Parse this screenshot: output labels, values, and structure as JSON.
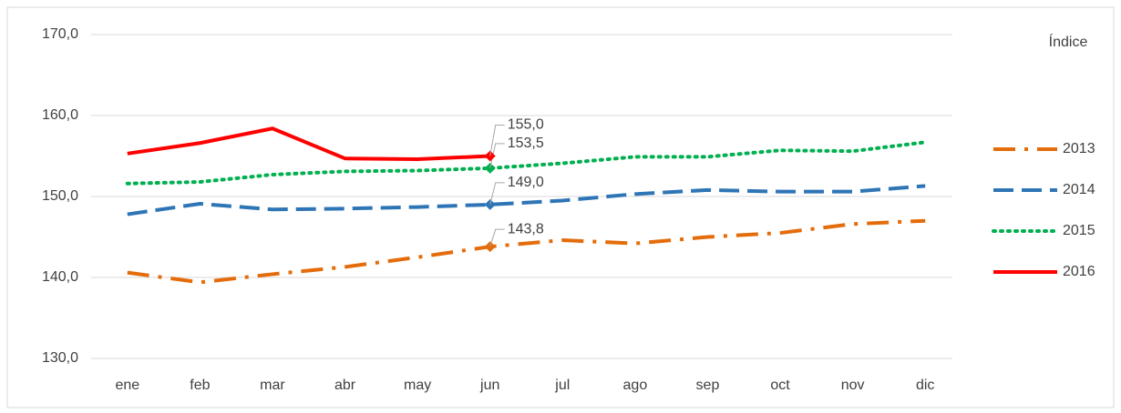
{
  "chart_data": {
    "type": "line",
    "legend_title": "Índice",
    "categories": [
      "ene",
      "feb",
      "mar",
      "abr",
      "may",
      "jun",
      "jul",
      "ago",
      "sep",
      "oct",
      "nov",
      "dic"
    ],
    "series": [
      {
        "name": "2013",
        "color": "#e46c0a",
        "style": "dashdot",
        "values": [
          140.6,
          139.4,
          140.4,
          141.3,
          142.5,
          143.8,
          144.6,
          144.2,
          145.0,
          145.5,
          146.6,
          147.0
        ],
        "value_labels": [
          null,
          null,
          null,
          null,
          null,
          "143,8",
          null,
          null,
          null,
          null,
          null,
          null
        ]
      },
      {
        "name": "2014",
        "color": "#2e75b6",
        "style": "dash",
        "values": [
          147.8,
          149.1,
          148.4,
          148.5,
          148.7,
          149.0,
          149.5,
          150.3,
          150.8,
          150.6,
          150.6,
          151.3
        ],
        "value_labels": [
          null,
          null,
          null,
          null,
          null,
          "149,0",
          null,
          null,
          null,
          null,
          null,
          null
        ]
      },
      {
        "name": "2015",
        "color": "#00b050",
        "style": "dot",
        "values": [
          151.6,
          151.8,
          152.7,
          153.1,
          153.2,
          153.5,
          154.1,
          154.9,
          154.9,
          155.7,
          155.6,
          156.7
        ],
        "value_labels": [
          null,
          null,
          null,
          null,
          null,
          "153,5",
          null,
          null,
          null,
          null,
          null,
          null
        ]
      },
      {
        "name": "2016",
        "color": "#ff0000",
        "style": "solid",
        "values": [
          155.3,
          156.6,
          158.4,
          154.7,
          154.6,
          155.0,
          null,
          null,
          null,
          null,
          null,
          null
        ],
        "value_labels": [
          null,
          null,
          null,
          null,
          null,
          "155,0",
          null,
          null,
          null,
          null,
          null,
          null
        ]
      }
    ],
    "ylim": [
      130,
      170
    ],
    "yticks": [
      {
        "value": 130,
        "label": "130,0"
      },
      {
        "value": 140,
        "label": "140,0"
      },
      {
        "value": 150,
        "label": "150,0"
      },
      {
        "value": 160,
        "label": "160,0"
      },
      {
        "value": 170,
        "label": "170,0"
      }
    ],
    "grid": true,
    "legend": "right"
  }
}
